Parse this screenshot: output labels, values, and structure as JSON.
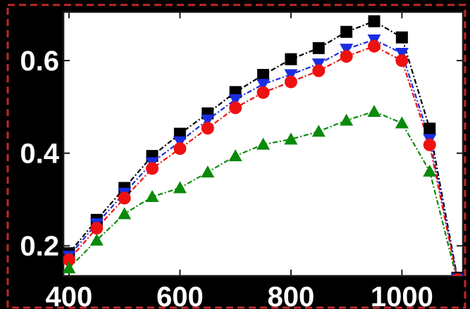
{
  "chart_data": {
    "type": "line",
    "title": "",
    "xlabel": "",
    "ylabel": "",
    "xlim": [
      390,
      1110
    ],
    "ylim": [
      0.135,
      0.705
    ],
    "x_ticks": [
      400,
      600,
      800,
      1000
    ],
    "x_tick_labels": [
      "400",
      "600",
      "800",
      "1000"
    ],
    "y_ticks": [
      0.2,
      0.4,
      0.6
    ],
    "y_tick_labels": [
      "0.2",
      "0.4",
      "0.6"
    ],
    "grid": false,
    "legend": "none",
    "series": [
      {
        "marker": "square",
        "color": "#000000",
        "line_style": "dash-dot",
        "points": [
          [
            400,
            0.184
          ],
          [
            450,
            0.256
          ],
          [
            500,
            0.325
          ],
          [
            550,
            0.394
          ],
          [
            600,
            0.442
          ],
          [
            650,
            0.486
          ],
          [
            700,
            0.532
          ],
          [
            750,
            0.569
          ],
          [
            800,
            0.603
          ],
          [
            850,
            0.627
          ],
          [
            900,
            0.662
          ],
          [
            950,
            0.685
          ],
          [
            1000,
            0.65
          ],
          [
            1050,
            0.453
          ],
          [
            1100,
            0.131
          ]
        ]
      },
      {
        "marker": "triangle-down",
        "color": "#1a2de0",
        "line_style": "dash-dot",
        "points": [
          [
            400,
            0.178
          ],
          [
            450,
            0.248
          ],
          [
            500,
            0.314
          ],
          [
            550,
            0.38
          ],
          [
            600,
            0.425
          ],
          [
            650,
            0.472
          ],
          [
            700,
            0.516
          ],
          [
            750,
            0.549
          ],
          [
            800,
            0.57
          ],
          [
            850,
            0.593
          ],
          [
            900,
            0.625
          ],
          [
            950,
            0.645
          ],
          [
            1000,
            0.616
          ],
          [
            1050,
            0.43
          ],
          [
            1100,
            0.129
          ]
        ]
      },
      {
        "marker": "circle",
        "color": "#ee1111",
        "line_style": "dash-dot",
        "points": [
          [
            400,
            0.17
          ],
          [
            450,
            0.238
          ],
          [
            500,
            0.303
          ],
          [
            550,
            0.367
          ],
          [
            600,
            0.41
          ],
          [
            650,
            0.454
          ],
          [
            700,
            0.498
          ],
          [
            750,
            0.531
          ],
          [
            800,
            0.554
          ],
          [
            850,
            0.578
          ],
          [
            900,
            0.609
          ],
          [
            950,
            0.631
          ],
          [
            1000,
            0.6
          ],
          [
            1050,
            0.418
          ],
          [
            1100,
            0.127
          ]
        ]
      },
      {
        "marker": "triangle-up",
        "color": "#0a8a0a",
        "line_style": "dash-dot",
        "points": [
          [
            400,
            0.152
          ],
          [
            450,
            0.212
          ],
          [
            500,
            0.269
          ],
          [
            550,
            0.306
          ],
          [
            600,
            0.325
          ],
          [
            650,
            0.359
          ],
          [
            700,
            0.394
          ],
          [
            750,
            0.419
          ],
          [
            800,
            0.43
          ],
          [
            850,
            0.447
          ],
          [
            900,
            0.471
          ],
          [
            950,
            0.49
          ],
          [
            1000,
            0.465
          ],
          [
            1050,
            0.361
          ],
          [
            1100,
            0.124
          ]
        ]
      }
    ]
  }
}
